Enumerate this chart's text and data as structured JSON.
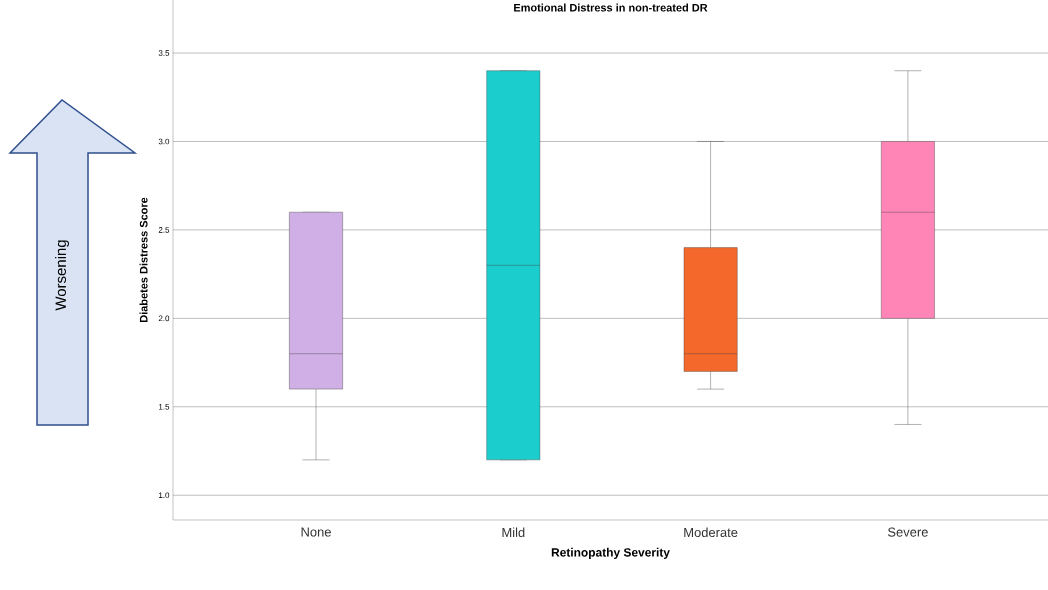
{
  "chart_data": {
    "type": "box",
    "title": "Emotional Distress in non-treated DR",
    "xlabel": "Retinopathy Severity",
    "ylabel": "Diabetes Distress Score",
    "categories": [
      "None",
      "Mild",
      "Moderate",
      "Severe"
    ],
    "colors": [
      "#d0aee6",
      "#1ccdcd",
      "#f4682c",
      "#ff85b7"
    ],
    "boxes": [
      {
        "low": 1.2,
        "q1": 1.6,
        "median": 1.8,
        "q3": 2.6,
        "high": 2.6
      },
      {
        "low": 1.2,
        "q1": 1.2,
        "median": 2.3,
        "q3": 3.4,
        "high": 3.4
      },
      {
        "low": 1.6,
        "q1": 1.7,
        "median": 1.8,
        "q3": 2.4,
        "high": 3.0
      },
      {
        "low": 1.4,
        "q1": 2.0,
        "median": 2.6,
        "q3": 3.0,
        "high": 3.4
      }
    ],
    "ylim": [
      0.86,
      3.8
    ],
    "yticks": [
      {
        "value": 1,
        "label": "1.0"
      },
      {
        "value": 1.5,
        "label": "1.5"
      },
      {
        "value": 2,
        "label": "2.0"
      },
      {
        "value": 2.5,
        "label": "2.5"
      },
      {
        "value": 3,
        "label": "3.0"
      },
      {
        "value": 3.5,
        "label": "3.5"
      }
    ],
    "grid": "y",
    "annotations": [
      "Worsening"
    ]
  }
}
